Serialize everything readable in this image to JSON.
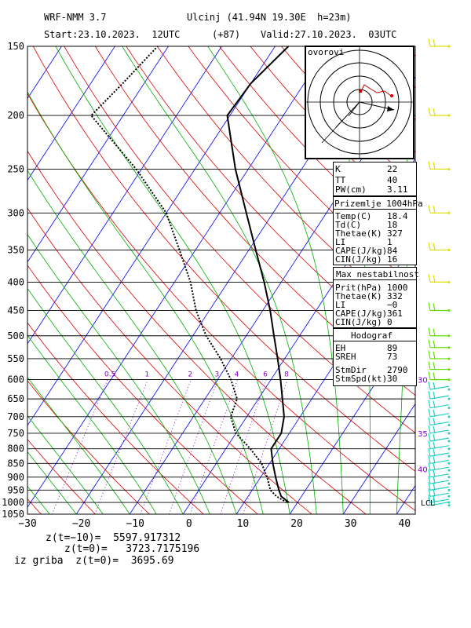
{
  "header": {
    "model": "WRF-NMM 3.7",
    "location": "Ulcinj (41.94N 19.30E  h=23m)",
    "start": "Start:23.10.2023.  12UTC",
    "lead": "(+87)",
    "valid": "Valid:27.10.2023.  03UTC"
  },
  "chart_data": {
    "type": "line",
    "xlabel": "",
    "ylabel": "",
    "x_ticks": [
      -30,
      -20,
      -10,
      0,
      10,
      20,
      30,
      40
    ],
    "x_tick_labels": [
      "−30",
      "−20",
      "−10",
      "0",
      "10",
      "20",
      "30",
      "40"
    ],
    "y_ticks": [
      150,
      200,
      250,
      300,
      350,
      400,
      450,
      500,
      550,
      600,
      650,
      700,
      750,
      800,
      850,
      900,
      950,
      1000,
      1050
    ],
    "y_scale": "log-pressure",
    "xlim": [
      -30,
      42
    ],
    "ylim": [
      1050,
      150
    ],
    "mixing_ratio_labels": [
      "0.5",
      "1",
      "2",
      "3",
      "4",
      "6",
      "8"
    ],
    "mixing_ratio_values": [
      0.5,
      1,
      2,
      3,
      4,
      6,
      8
    ],
    "wind_speed_labels": [
      {
        "label": "30",
        "p": 600
      },
      {
        "label": "35",
        "p": 750
      },
      {
        "label": "40",
        "p": 870
      }
    ],
    "lcl_label": "LCL",
    "series": [
      {
        "name": "",
        "style": "solid",
        "color": "#000000",
        "points": [
          {
            "p": 1000,
            "t": 18.4
          },
          {
            "p": 975,
            "t": 16.2
          },
          {
            "p": 950,
            "t": 15.0
          },
          {
            "p": 900,
            "t": 12.8
          },
          {
            "p": 850,
            "t": 10.6
          },
          {
            "p": 800,
            "t": 8.5
          },
          {
            "p": 750,
            "t": 8.5
          },
          {
            "p": 700,
            "t": 7.0
          },
          {
            "p": 650,
            "t": 4.5
          },
          {
            "p": 600,
            "t": 1.8
          },
          {
            "p": 550,
            "t": -1.3
          },
          {
            "p": 500,
            "t": -4.8
          },
          {
            "p": 450,
            "t": -8.6
          },
          {
            "p": 400,
            "t": -13.2
          },
          {
            "p": 350,
            "t": -18.7
          },
          {
            "p": 300,
            "t": -25.0
          },
          {
            "p": 250,
            "t": -32.4
          },
          {
            "p": 200,
            "t": -40.5
          },
          {
            "p": 175,
            "t": -40.0
          },
          {
            "p": 150,
            "t": -37.5
          }
        ]
      },
      {
        "name": "",
        "style": "dotted",
        "color": "#000000",
        "points": [
          {
            "p": 1000,
            "t": 18.0
          },
          {
            "p": 975,
            "t": 15.3
          },
          {
            "p": 950,
            "t": 13.4
          },
          {
            "p": 900,
            "t": 11.2
          },
          {
            "p": 850,
            "t": 8.5
          },
          {
            "p": 800,
            "t": 4.6
          },
          {
            "p": 750,
            "t": 0.0
          },
          {
            "p": 700,
            "t": -3.0
          },
          {
            "p": 650,
            "t": -4.0
          },
          {
            "p": 600,
            "t": -7.5
          },
          {
            "p": 550,
            "t": -12.0
          },
          {
            "p": 500,
            "t": -17.5
          },
          {
            "p": 450,
            "t": -22.5
          },
          {
            "p": 400,
            "t": -27.0
          },
          {
            "p": 350,
            "t": -33.0
          },
          {
            "p": 300,
            "t": -40.0
          },
          {
            "p": 250,
            "t": -51.0
          },
          {
            "p": 200,
            "t": -66.0
          },
          {
            "p": 175,
            "t": -64.0
          },
          {
            "p": 150,
            "t": -62.0
          }
        ]
      }
    ]
  },
  "hodograph": {
    "title": "ovorovi"
  },
  "indices": {
    "rows": [
      {
        "label": "K",
        "value": "22"
      },
      {
        "label": "TT",
        "value": "40"
      },
      {
        "label": "PW(cm)",
        "value": "3.11"
      }
    ]
  },
  "surface": {
    "title": "Prizemlje 1004hPa",
    "rows": [
      {
        "label": "Temp(C)",
        "value": "18.4"
      },
      {
        "label": "Td(C)",
        "value": "18"
      },
      {
        "label": "Thetae(K)",
        "value": "327"
      },
      {
        "label": "LI",
        "value": "1"
      },
      {
        "label": "CAPE(J/kg)",
        "value": "84"
      },
      {
        "label": "CIN(J/kg)",
        "value": "16"
      }
    ]
  },
  "max_instability": {
    "title": "Max nestabilnost",
    "rows": [
      {
        "label": "Prit(hPa)",
        "value": "1000"
      },
      {
        "label": "Thetae(K)",
        "value": "332"
      },
      {
        "label": "LI",
        "value": "−0"
      },
      {
        "label": "CAPE(J/kg)",
        "value": "361"
      },
      {
        "label": "CIN(J/kg)",
        "value": "0"
      }
    ]
  },
  "hodograph_params": {
    "title": "Hodograf",
    "rows": [
      {
        "label": "EH",
        "value": "89"
      },
      {
        "label": "SREH",
        "value": "73"
      },
      {
        "label": "StmDir",
        "value": "2790"
      },
      {
        "label": "StmSpd(kt)",
        "value": "30"
      }
    ]
  },
  "footer": {
    "line1": "z(t=−10)=  5597.917312",
    "line2": "z(t=0)=   3723.7175196",
    "line3": "iz griba  z(t=0)=  3695.69"
  },
  "colors": {
    "isotherm": "#0000ff",
    "dry_adiabat": "#dd0000",
    "moist_adiabat": "#00b000",
    "mixing_ratio": "#8800cc",
    "wind_upper": "#e0e000",
    "wind_mid": "#60e000",
    "wind_low": "#20d0c0"
  }
}
